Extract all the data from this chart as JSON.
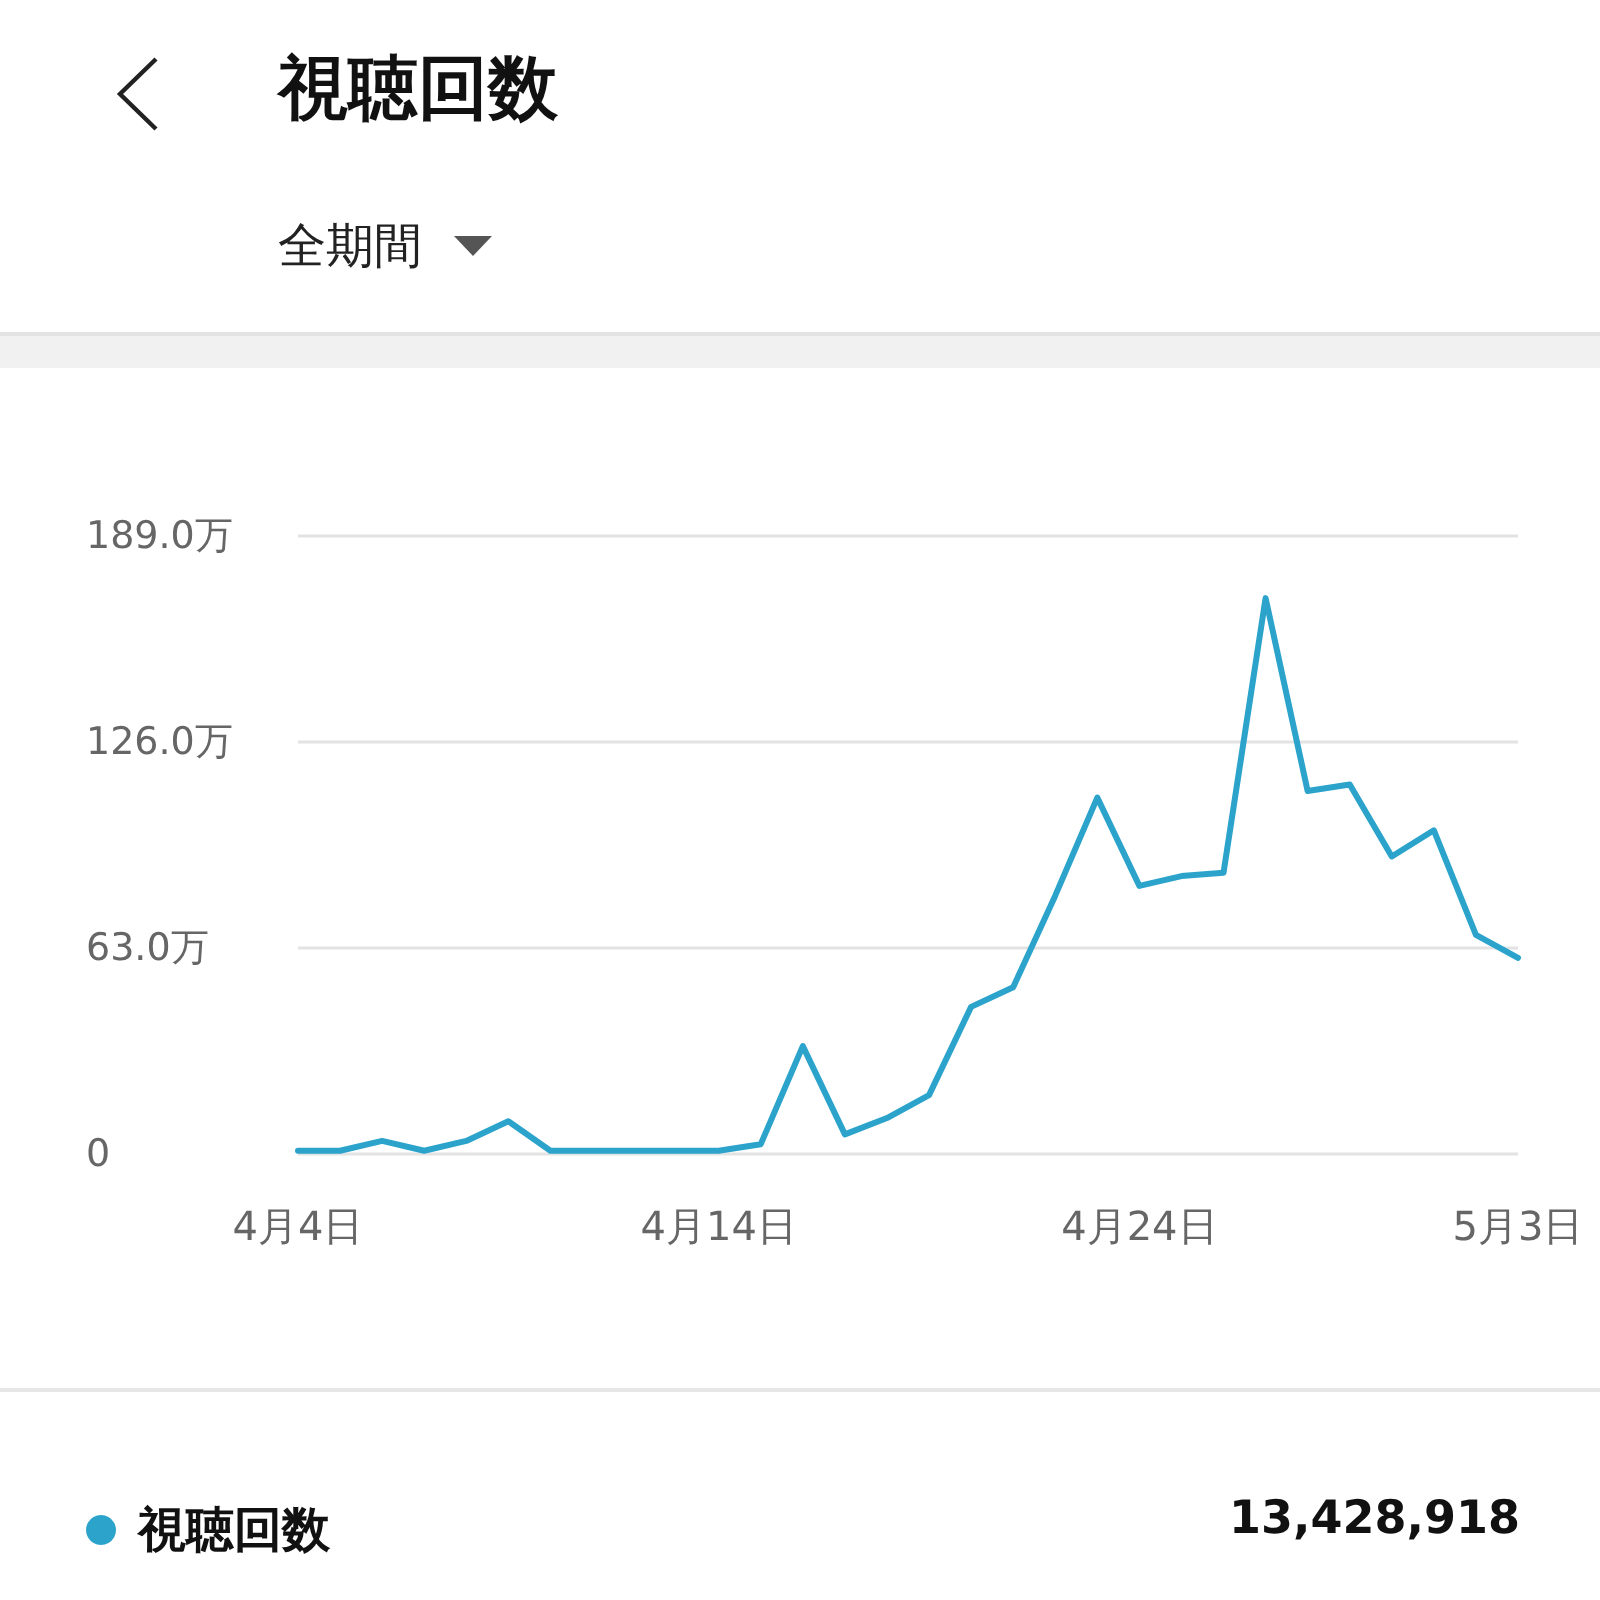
{
  "chart_data": {
    "type": "line",
    "title": "視聴回数",
    "subtitle": "全期間",
    "categories": [
      "4月4日",
      null,
      null,
      null,
      null,
      null,
      null,
      null,
      null,
      null,
      "4月14日",
      null,
      null,
      null,
      null,
      null,
      null,
      null,
      null,
      null,
      "4月24日",
      null,
      null,
      null,
      null,
      null,
      null,
      null,
      null,
      "5月3日"
    ],
    "series": [
      {
        "name": "視聴回数",
        "color": "#2ba3cb",
        "values": [
          1,
          1,
          4,
          1,
          4,
          10,
          1,
          1,
          1,
          1,
          1,
          3,
          33,
          6,
          11,
          18,
          45,
          51,
          79,
          109,
          82,
          85,
          86,
          170,
          111,
          113,
          91,
          99,
          67,
          60
        ]
      }
    ],
    "ylim": [
      0,
      189
    ],
    "yticks": [
      0,
      {
        "value": 63,
        "label": "63.0万"
      },
      {
        "value": 126,
        "label": "126.0万"
      },
      {
        "value": 189,
        "label": "189.0万"
      }
    ],
    "grid": "y",
    "legend": "bottom left",
    "marker": "none",
    "line_style": "solid",
    "annotations": [
      "13,428,918"
    ]
  }
}
